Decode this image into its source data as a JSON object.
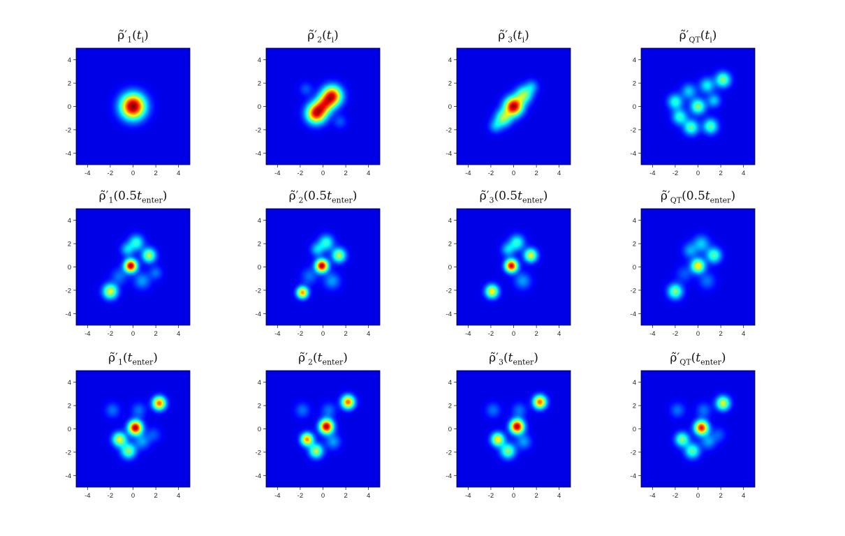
{
  "chart_data": [
    {
      "panel_title": {
        "rho": "ρ̃′",
        "sub": "1",
        "arg_pre": "(",
        "arg_main": "t",
        "arg_sub": "i",
        "arg_post": ")"
      },
      "type": "heatmap",
      "xlim": [
        -5,
        5
      ],
      "ylim": [
        -5,
        5
      ],
      "xticks": [
        -4,
        -2,
        0,
        2,
        4
      ],
      "yticks": [
        -4,
        -2,
        0,
        2,
        4
      ],
      "peaks": [
        {
          "x": 0,
          "y": 0,
          "a": 1.0,
          "s": 0.75
        }
      ]
    },
    {
      "panel_title": {
        "rho": "ρ̃′",
        "sub": "2",
        "arg_pre": "(",
        "arg_main": "t",
        "arg_sub": "i",
        "arg_post": ")"
      },
      "type": "heatmap",
      "xlim": [
        -5,
        5
      ],
      "ylim": [
        -5,
        5
      ],
      "xticks": [
        -4,
        -2,
        0,
        2,
        4
      ],
      "yticks": [
        -4,
        -2,
        0,
        2,
        4
      ],
      "peaks": [
        {
          "x": -0.6,
          "y": -0.6,
          "a": 0.85,
          "s": 0.6
        },
        {
          "x": 0.8,
          "y": 0.9,
          "a": 0.85,
          "s": 0.6
        },
        {
          "x": 0.1,
          "y": 0.15,
          "a": 0.5,
          "s": 0.55
        },
        {
          "x": -1.5,
          "y": 1.5,
          "a": 0.12,
          "s": 0.4
        },
        {
          "x": 1.5,
          "y": -1.3,
          "a": 0.12,
          "s": 0.4
        }
      ]
    },
    {
      "panel_title": {
        "rho": "ρ̃′",
        "sub": "3",
        "arg_pre": "(",
        "arg_main": "t",
        "arg_sub": "i",
        "arg_post": ")"
      },
      "type": "heatmap",
      "xlim": [
        -5,
        5
      ],
      "ylim": [
        -5,
        5
      ],
      "xticks": [
        -4,
        -2,
        0,
        2,
        4
      ],
      "yticks": [
        -4,
        -2,
        0,
        2,
        4
      ],
      "peaks": [
        {
          "x": 0,
          "y": 0,
          "a": 0.95,
          "s": 0.55
        },
        {
          "x": -0.9,
          "y": -1.0,
          "a": 0.45,
          "s": 0.5
        },
        {
          "x": 0.9,
          "y": 1.0,
          "a": 0.45,
          "s": 0.5
        },
        {
          "x": -1.6,
          "y": -1.7,
          "a": 0.2,
          "s": 0.4
        },
        {
          "x": 1.6,
          "y": 1.7,
          "a": 0.2,
          "s": 0.4
        }
      ]
    },
    {
      "panel_title": {
        "rho": "ρ̃′",
        "sub": "QT",
        "arg_pre": "(",
        "arg_main": "t",
        "arg_sub": "i",
        "arg_post": ")"
      },
      "type": "heatmap",
      "xlim": [
        -5,
        5
      ],
      "ylim": [
        -5,
        5
      ],
      "xticks": [
        -4,
        -2,
        0,
        2,
        4
      ],
      "yticks": [
        -4,
        -2,
        0,
        2,
        4
      ],
      "peaks": [
        {
          "x": 2.2,
          "y": 2.3,
          "a": 0.45,
          "s": 0.45
        },
        {
          "x": 0,
          "y": 0,
          "a": 0.45,
          "s": 0.45
        },
        {
          "x": -2,
          "y": 0.4,
          "a": 0.35,
          "s": 0.45
        },
        {
          "x": -1.6,
          "y": -0.9,
          "a": 0.35,
          "s": 0.45
        },
        {
          "x": -0.6,
          "y": -1.8,
          "a": 0.4,
          "s": 0.45
        },
        {
          "x": 1.1,
          "y": -1.7,
          "a": 0.4,
          "s": 0.45
        },
        {
          "x": 0.8,
          "y": 1.8,
          "a": 0.3,
          "s": 0.45
        },
        {
          "x": -0.8,
          "y": 1.3,
          "a": 0.25,
          "s": 0.45
        },
        {
          "x": 1.4,
          "y": 0.5,
          "a": 0.25,
          "s": 0.4
        }
      ]
    },
    {
      "panel_title": {
        "rho": "ρ̃′",
        "sub": "1",
        "arg_pre": "(0.5",
        "arg_main": "t",
        "arg_sub": "enter",
        "arg_post": ")"
      },
      "type": "heatmap",
      "xlim": [
        -5,
        5
      ],
      "ylim": [
        -5,
        5
      ],
      "xticks": [
        -4,
        -2,
        0,
        2,
        4
      ],
      "yticks": [
        -4,
        -2,
        0,
        2,
        4
      ],
      "peaks": [
        {
          "x": -0.2,
          "y": 0.1,
          "a": 0.95,
          "s": 0.38
        },
        {
          "x": -2,
          "y": -2.1,
          "a": 0.55,
          "s": 0.45
        },
        {
          "x": 1.4,
          "y": 1.0,
          "a": 0.5,
          "s": 0.42
        },
        {
          "x": 0.3,
          "y": 2.1,
          "a": 0.35,
          "s": 0.45
        },
        {
          "x": -0.5,
          "y": 1.5,
          "a": 0.25,
          "s": 0.4
        },
        {
          "x": 0.8,
          "y": -1.2,
          "a": 0.2,
          "s": 0.5
        },
        {
          "x": -1.2,
          "y": -0.8,
          "a": 0.15,
          "s": 0.5
        },
        {
          "x": 2.0,
          "y": -0.5,
          "a": 0.15,
          "s": 0.4
        }
      ]
    },
    {
      "panel_title": {
        "rho": "ρ̃′",
        "sub": "2",
        "arg_pre": "(0.5",
        "arg_main": "t",
        "arg_sub": "enter",
        "arg_post": ")"
      },
      "type": "heatmap",
      "xlim": [
        -5,
        5
      ],
      "ylim": [
        -5,
        5
      ],
      "xticks": [
        -4,
        -2,
        0,
        2,
        4
      ],
      "yticks": [
        -4,
        -2,
        0,
        2,
        4
      ],
      "peaks": [
        {
          "x": -0.1,
          "y": 0.1,
          "a": 0.95,
          "s": 0.38
        },
        {
          "x": -1.8,
          "y": -2.2,
          "a": 0.7,
          "s": 0.35
        },
        {
          "x": 1.4,
          "y": 1.0,
          "a": 0.5,
          "s": 0.42
        },
        {
          "x": 0.3,
          "y": 2.1,
          "a": 0.35,
          "s": 0.45
        },
        {
          "x": -0.5,
          "y": 1.5,
          "a": 0.25,
          "s": 0.4
        },
        {
          "x": 0.8,
          "y": -1.2,
          "a": 0.2,
          "s": 0.5
        },
        {
          "x": -1.2,
          "y": -0.8,
          "a": 0.15,
          "s": 0.5
        }
      ]
    },
    {
      "panel_title": {
        "rho": "ρ̃′",
        "sub": "3",
        "arg_pre": "(0.5",
        "arg_main": "t",
        "arg_sub": "enter",
        "arg_post": ")"
      },
      "type": "heatmap",
      "xlim": [
        -5,
        5
      ],
      "ylim": [
        -5,
        5
      ],
      "xticks": [
        -4,
        -2,
        0,
        2,
        4
      ],
      "yticks": [
        -4,
        -2,
        0,
        2,
        4
      ],
      "peaks": [
        {
          "x": -0.2,
          "y": 0.1,
          "a": 0.9,
          "s": 0.38
        },
        {
          "x": -1.9,
          "y": -2.1,
          "a": 0.6,
          "s": 0.4
        },
        {
          "x": 1.5,
          "y": 1.0,
          "a": 0.55,
          "s": 0.4
        },
        {
          "x": 0.3,
          "y": 2.1,
          "a": 0.35,
          "s": 0.45
        },
        {
          "x": -0.5,
          "y": 1.5,
          "a": 0.25,
          "s": 0.4
        },
        {
          "x": 0.8,
          "y": -1.2,
          "a": 0.2,
          "s": 0.5
        }
      ]
    },
    {
      "panel_title": {
        "rho": "ρ̃′",
        "sub": "QT",
        "arg_pre": "(0.5",
        "arg_main": "t",
        "arg_sub": "enter",
        "arg_post": ")"
      },
      "type": "heatmap",
      "xlim": [
        -5,
        5
      ],
      "ylim": [
        -5,
        5
      ],
      "xticks": [
        -4,
        -2,
        0,
        2,
        4
      ],
      "yticks": [
        -4,
        -2,
        0,
        2,
        4
      ],
      "peaks": [
        {
          "x": 0,
          "y": 0.1,
          "a": 0.6,
          "s": 0.42
        },
        {
          "x": -2,
          "y": -2.1,
          "a": 0.45,
          "s": 0.45
        },
        {
          "x": 1.4,
          "y": 1.0,
          "a": 0.4,
          "s": 0.45
        },
        {
          "x": 0.3,
          "y": 2.0,
          "a": 0.25,
          "s": 0.5
        },
        {
          "x": -0.7,
          "y": 1.4,
          "a": 0.2,
          "s": 0.45
        },
        {
          "x": 0.8,
          "y": -1.2,
          "a": 0.15,
          "s": 0.5
        },
        {
          "x": -1.2,
          "y": -0.6,
          "a": 0.12,
          "s": 0.5
        }
      ]
    },
    {
      "panel_title": {
        "rho": "ρ̃′",
        "sub": "1",
        "arg_pre": "(",
        "arg_main": "t",
        "arg_sub": "enter",
        "arg_post": ")"
      },
      "type": "heatmap",
      "xlim": [
        -5,
        5
      ],
      "ylim": [
        -5,
        5
      ],
      "xticks": [
        -4,
        -2,
        0,
        2,
        4
      ],
      "yticks": [
        -4,
        -2,
        0,
        2,
        4
      ],
      "peaks": [
        {
          "x": 0.2,
          "y": 0.1,
          "a": 0.95,
          "s": 0.42
        },
        {
          "x": 2.3,
          "y": 2.2,
          "a": 0.75,
          "s": 0.4
        },
        {
          "x": -1.2,
          "y": -0.9,
          "a": 0.55,
          "s": 0.42
        },
        {
          "x": -0.4,
          "y": -1.9,
          "a": 0.45,
          "s": 0.45
        },
        {
          "x": 0.8,
          "y": -1.1,
          "a": 0.2,
          "s": 0.45
        },
        {
          "x": -1.8,
          "y": 1.6,
          "a": 0.15,
          "s": 0.45
        },
        {
          "x": 0.5,
          "y": 1.6,
          "a": 0.15,
          "s": 0.45
        },
        {
          "x": 1.8,
          "y": -0.5,
          "a": 0.12,
          "s": 0.45
        }
      ]
    },
    {
      "panel_title": {
        "rho": "ρ̃′",
        "sub": "2",
        "arg_pre": "(",
        "arg_main": "t",
        "arg_sub": "enter",
        "arg_post": ")"
      },
      "type": "heatmap",
      "xlim": [
        -5,
        5
      ],
      "ylim": [
        -5,
        5
      ],
      "xticks": [
        -4,
        -2,
        0,
        2,
        4
      ],
      "yticks": [
        -4,
        -2,
        0,
        2,
        4
      ],
      "peaks": [
        {
          "x": 0.3,
          "y": 0.2,
          "a": 0.95,
          "s": 0.42
        },
        {
          "x": 2.2,
          "y": 2.3,
          "a": 0.75,
          "s": 0.4
        },
        {
          "x": -1.4,
          "y": -0.9,
          "a": 0.7,
          "s": 0.38
        },
        {
          "x": -0.6,
          "y": -1.9,
          "a": 0.5,
          "s": 0.42
        },
        {
          "x": 0.9,
          "y": -1.1,
          "a": 0.2,
          "s": 0.45
        },
        {
          "x": -1.8,
          "y": 1.6,
          "a": 0.15,
          "s": 0.45
        },
        {
          "x": 0.5,
          "y": 1.6,
          "a": 0.15,
          "s": 0.45
        }
      ]
    },
    {
      "panel_title": {
        "rho": "ρ̃′",
        "sub": "3",
        "arg_pre": "(",
        "arg_main": "t",
        "arg_sub": "enter",
        "arg_post": ")"
      },
      "type": "heatmap",
      "xlim": [
        -5,
        5
      ],
      "ylim": [
        -5,
        5
      ],
      "xticks": [
        -4,
        -2,
        0,
        2,
        4
      ],
      "yticks": [
        -4,
        -2,
        0,
        2,
        4
      ],
      "peaks": [
        {
          "x": 0.3,
          "y": 0.2,
          "a": 0.95,
          "s": 0.42
        },
        {
          "x": 2.3,
          "y": 2.3,
          "a": 0.75,
          "s": 0.4
        },
        {
          "x": -1.4,
          "y": -0.9,
          "a": 0.6,
          "s": 0.4
        },
        {
          "x": -0.5,
          "y": -1.9,
          "a": 0.45,
          "s": 0.45
        },
        {
          "x": 0.9,
          "y": -1.1,
          "a": 0.2,
          "s": 0.45
        },
        {
          "x": -1.8,
          "y": 1.6,
          "a": 0.15,
          "s": 0.45
        },
        {
          "x": 0.5,
          "y": 1.6,
          "a": 0.15,
          "s": 0.45
        }
      ]
    },
    {
      "panel_title": {
        "rho": "ρ̃′",
        "sub": "QT",
        "arg_pre": "(",
        "arg_main": "t",
        "arg_sub": "enter",
        "arg_post": ")"
      },
      "type": "heatmap",
      "xlim": [
        -5,
        5
      ],
      "ylim": [
        -5,
        5
      ],
      "xticks": [
        -4,
        -2,
        0,
        2,
        4
      ],
      "yticks": [
        -4,
        -2,
        0,
        2,
        4
      ],
      "peaks": [
        {
          "x": 0.3,
          "y": 0.1,
          "a": 0.85,
          "s": 0.42
        },
        {
          "x": 2.2,
          "y": 2.2,
          "a": 0.55,
          "s": 0.42
        },
        {
          "x": -1.4,
          "y": -0.9,
          "a": 0.45,
          "s": 0.42
        },
        {
          "x": -0.5,
          "y": -1.9,
          "a": 0.4,
          "s": 0.45
        },
        {
          "x": 0.9,
          "y": -1.1,
          "a": 0.2,
          "s": 0.45
        },
        {
          "x": -1.8,
          "y": 1.6,
          "a": 0.15,
          "s": 0.45
        },
        {
          "x": 0.5,
          "y": 1.6,
          "a": 0.15,
          "s": 0.45
        },
        {
          "x": 1.8,
          "y": -0.5,
          "a": 0.12,
          "s": 0.45
        }
      ]
    }
  ]
}
